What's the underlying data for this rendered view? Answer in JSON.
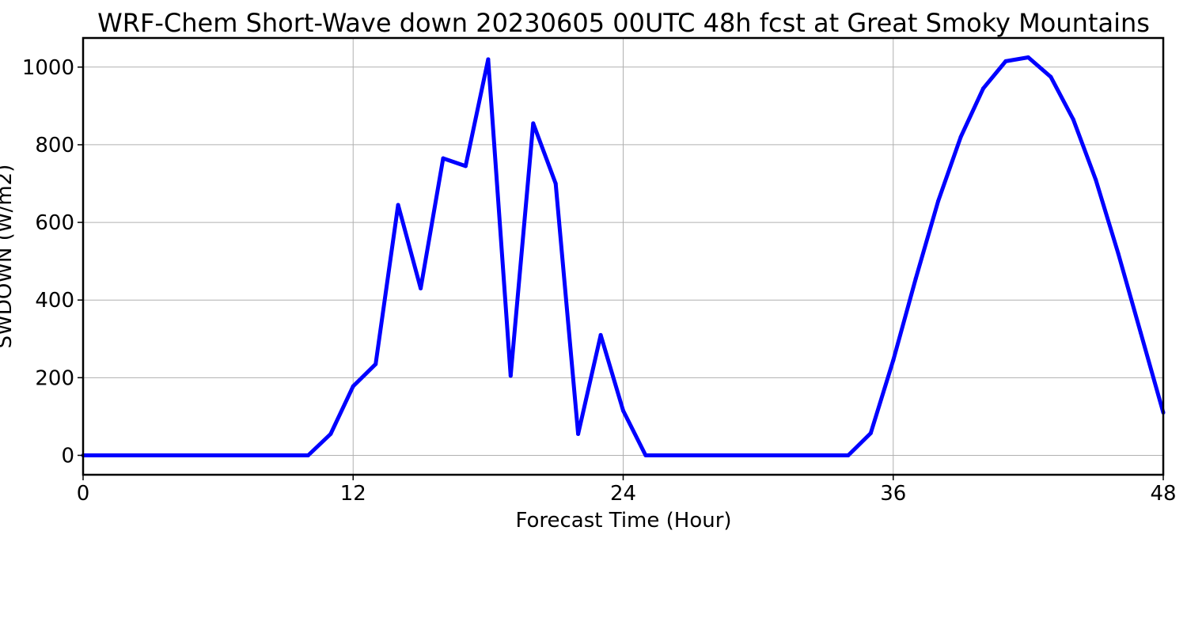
{
  "chart_data": {
    "type": "line",
    "title": "WRF-Chem Short-Wave down  20230605 00UTC 48h fcst at Great Smoky Mountains",
    "xlabel": "Forecast Time (Hour)",
    "ylabel": "SWDOWN  (W/m2)",
    "xlim": [
      0,
      48
    ],
    "ylim": [
      -50,
      1075
    ],
    "xticks": [
      0,
      12,
      24,
      36,
      48
    ],
    "yticks": [
      0,
      200,
      400,
      600,
      800,
      1000
    ],
    "grid": true,
    "colors": {
      "line": "#0000ff"
    },
    "x": [
      0,
      1,
      2,
      3,
      4,
      5,
      6,
      7,
      8,
      9,
      10,
      11,
      12,
      13,
      14,
      15,
      16,
      17,
      18,
      19,
      20,
      21,
      22,
      23,
      24,
      25,
      26,
      27,
      28,
      29,
      30,
      31,
      32,
      33,
      34,
      35,
      36,
      37,
      38,
      39,
      40,
      41,
      42,
      43,
      44,
      45,
      46,
      47,
      48
    ],
    "series": [
      {
        "values": [
          0,
          0,
          0,
          0,
          0,
          0,
          0,
          0,
          0,
          0,
          0,
          55,
          178,
          235,
          645,
          430,
          765,
          745,
          1020,
          205,
          855,
          700,
          55,
          310,
          115,
          0,
          0,
          0,
          0,
          0,
          0,
          0,
          0,
          0,
          0,
          57,
          245,
          455,
          655,
          820,
          945,
          1015,
          1025,
          975,
          865,
          710,
          520,
          315,
          110
        ]
      }
    ]
  }
}
